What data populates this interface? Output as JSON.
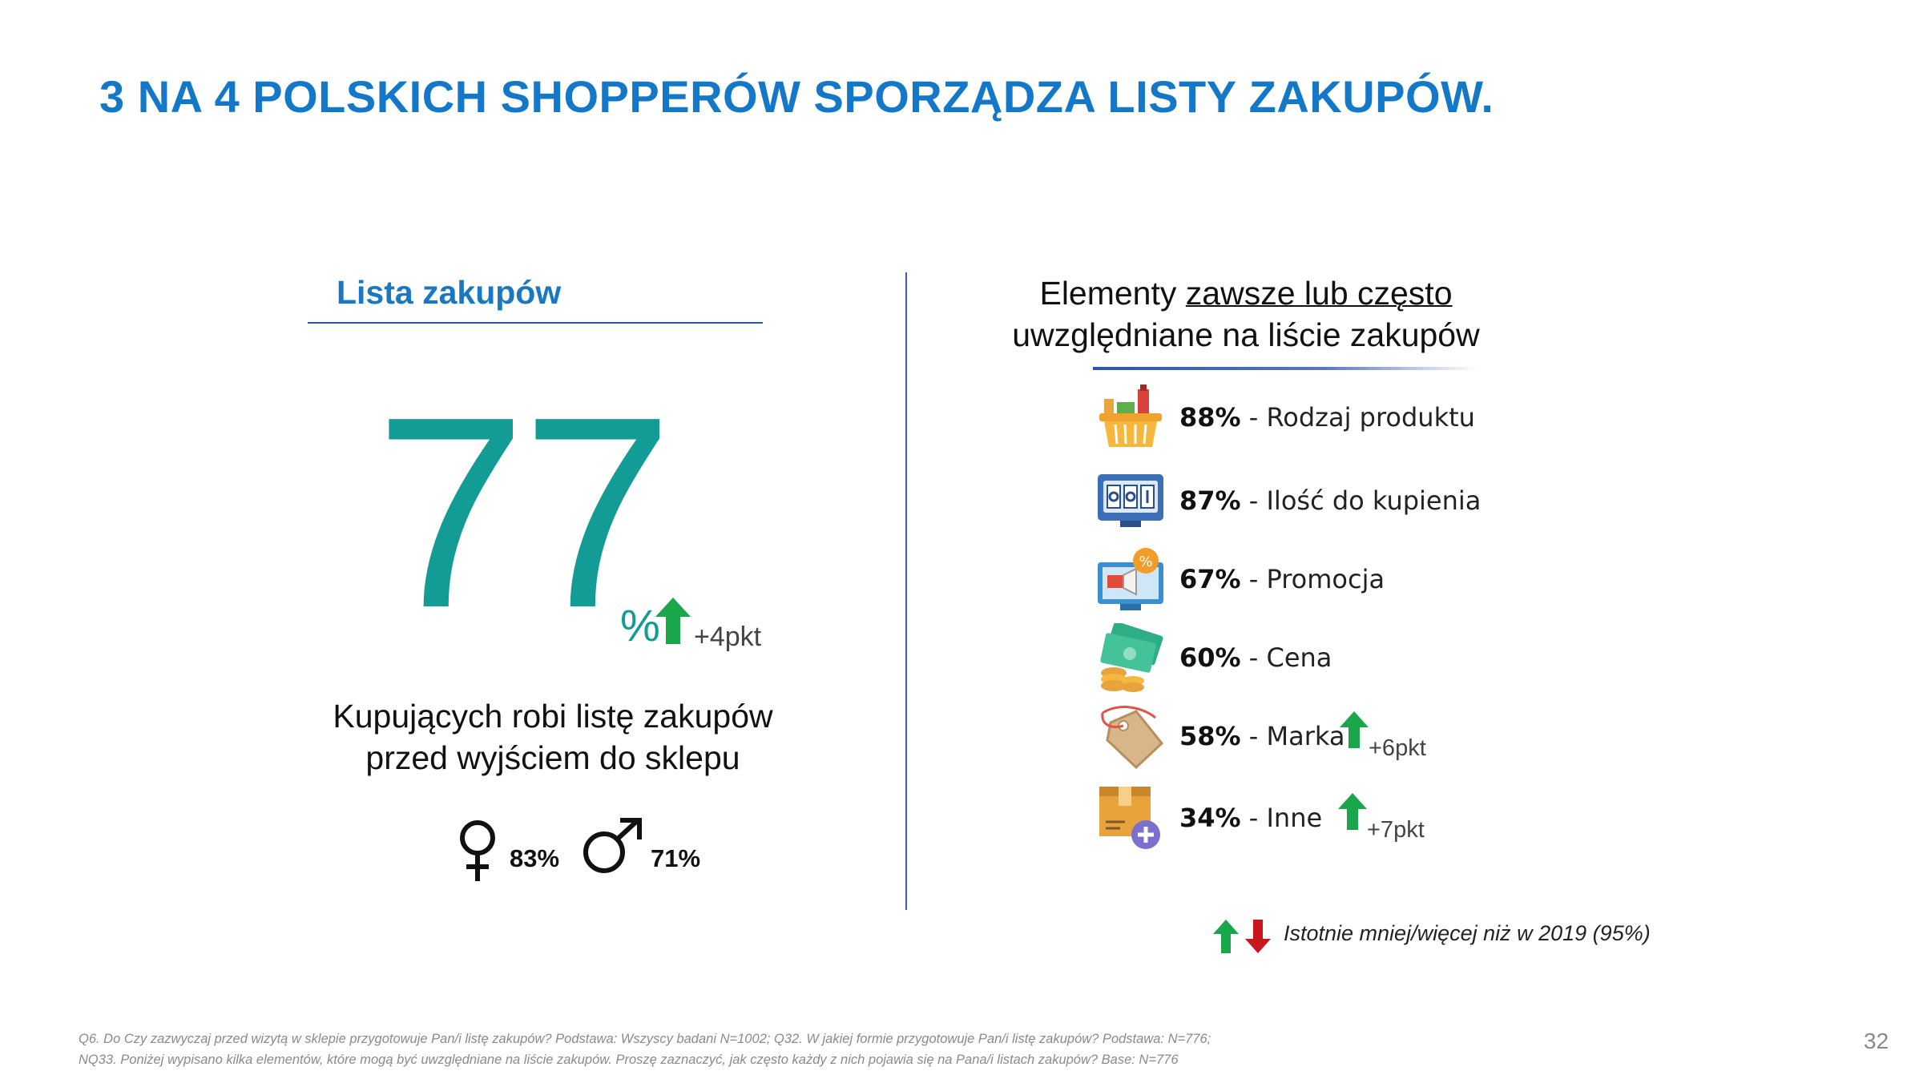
{
  "title": "3 NA 4 POLSKICH SHOPPERÓW SPORZĄDZA LISTY ZAKUPÓW.",
  "left": {
    "heading": "Lista zakupów",
    "big_number": "77",
    "percent_sign": "%",
    "change": "+4pkt",
    "description_line1": "Kupujących robi listę zakupów",
    "description_line2": "przed wyjściem do sklepu",
    "female_value": "83%",
    "male_value": "71%"
  },
  "right": {
    "heading_pre": "Elementy",
    "heading_underlined": "zawsze lub często",
    "heading_line2": "uwzględniane na liście zakupów",
    "items": [
      {
        "pct": "88%",
        "label": " - Rodzaj produktu",
        "change": "",
        "icon": "shopping-basket-icon"
      },
      {
        "pct": "87%",
        "label": " - Ilość do kupienia",
        "change": "",
        "icon": "counter-display-icon"
      },
      {
        "pct": "67%",
        "label": " - Promocja",
        "change": "",
        "icon": "promotion-monitor-icon"
      },
      {
        "pct": "60%",
        "label": " - Cena",
        "change": "",
        "icon": "money-coins-icon"
      },
      {
        "pct": "58%",
        "label": " - Marka",
        "change": "+6pkt",
        "icon": "price-tag-icon"
      },
      {
        "pct": "34%",
        "label": " - Inne",
        "change": "+7pkt",
        "icon": "box-add-icon"
      }
    ]
  },
  "legend": {
    "text": "Istotnie mniej/więcej niż w 2019 (95%)"
  },
  "footnote": {
    "line1": "Q6. Do Czy zazwyczaj przed wizytą w sklepie przygotowuje Pan/i listę zakupów? Podstawa: Wszyscy badani N=1002; Q32. W jakiej formie przygotowuje Pan/i listę zakupów? Podstawa: N=776;",
    "line2": "NQ33. Poniżej wypisano kilka elementów, które mogą być uwzględniane na liście zakupów. Proszę zaznaczyć, jak często każdy z nich pojawia się na Pana/i listach zakupów? Base: N=776"
  },
  "page_number": "32",
  "colors": {
    "title": "#1478c8",
    "accent_teal": "#139c96",
    "up_green": "#1aa64a",
    "down_red": "#c8171d",
    "rule_blue": "#2f55a8"
  }
}
